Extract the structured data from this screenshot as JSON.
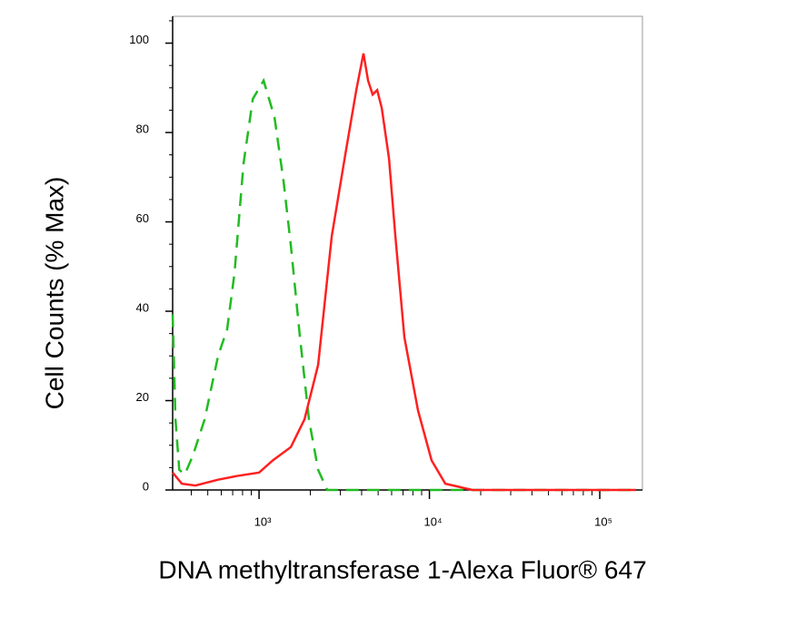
{
  "chart_data": {
    "type": "line",
    "xlabel": "DNA methyltransferase 1-Alexa Fluor® 647",
    "ylabel": "Cell Counts (% Max)",
    "xscale": "log",
    "xlim": [
      311,
      178000
    ],
    "ylim": [
      0,
      106
    ],
    "xticks": [
      {
        "value": 1000,
        "label": "10³"
      },
      {
        "value": 10000,
        "label": "10⁴"
      },
      {
        "value": 100000,
        "label": "10⁵"
      }
    ],
    "xminor_ticks": [
      400,
      500,
      600,
      700,
      800,
      900,
      2000,
      3000,
      4000,
      5000,
      6000,
      7000,
      8000,
      9000,
      20000,
      30000,
      40000,
      50000,
      60000,
      70000,
      80000,
      90000
    ],
    "yticks": [
      0,
      20,
      40,
      60,
      80,
      100
    ],
    "yminor_ticks": [
      5,
      10,
      15,
      25,
      30,
      35,
      45,
      50,
      55,
      65,
      70,
      75,
      85,
      90,
      95,
      105
    ],
    "series": [
      {
        "color": "#22bb22",
        "style": "dashed",
        "x": [
          311,
          323,
          340,
          366,
          408,
          479,
          575,
          650,
          718,
          811,
          919,
          1063,
          1233,
          1393,
          1537,
          1738,
          1963,
          2222,
          2512,
          163000
        ],
        "values": [
          39.3,
          15.8,
          4.5,
          3.5,
          7.6,
          15.8,
          30,
          36,
          48.6,
          73,
          87.5,
          91.6,
          83.4,
          69,
          54.7,
          34.2,
          15.8,
          4.5,
          0,
          0
        ]
      },
      {
        "color": "#ff2020",
        "style": "solid",
        "x": [
          311,
          352,
          423,
          575,
          736,
          1000,
          1202,
          1537,
          1848,
          2222,
          2671,
          3213,
          3724,
          4103,
          4365,
          4645,
          4935,
          5248,
          5794,
          6310,
          7129,
          8570,
          10300,
          12400,
          17900,
          163000
        ],
        "values": [
          3.9,
          1.4,
          1,
          2.3,
          3.1,
          3.9,
          6.6,
          9.6,
          15.8,
          28,
          56.8,
          75.2,
          89.5,
          97.7,
          91.6,
          88.5,
          89.5,
          85.5,
          74.2,
          56.8,
          34.2,
          17.8,
          6.6,
          1.4,
          0,
          0
        ]
      }
    ]
  }
}
